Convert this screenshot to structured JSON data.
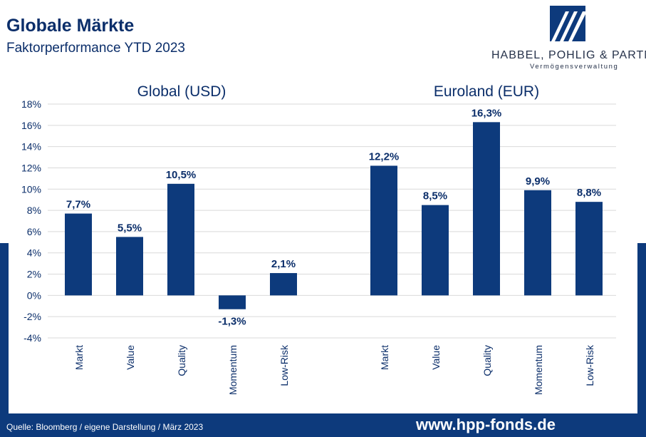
{
  "header": {
    "title": "Globale Märkte",
    "subtitle": "Faktorperformance YTD 2023"
  },
  "logo": {
    "name": "HABBEL, POHLIG & PARTNER",
    "tagline": "Vermögensverwaltung",
    "icon": "stripes-logo-icon"
  },
  "footer": {
    "source": "Quelle: Bloomberg / eigene Darstellung / März 2023",
    "url": "www.hpp-fonds.de"
  },
  "colors": {
    "bar": "#0d3a7c",
    "text": "#0b2e6a",
    "grid": "#d9d9d9"
  },
  "chart_data": {
    "type": "bar",
    "ylim": [
      -4,
      18
    ],
    "yticks": [
      "18%",
      "16%",
      "14%",
      "12%",
      "10%",
      "8%",
      "6%",
      "4%",
      "2%",
      "0%",
      "-2%",
      "-4%"
    ],
    "grid": true,
    "groups": [
      {
        "title": "Global (USD)",
        "categories": [
          "Markt",
          "Value",
          "Quality",
          "Momentum",
          "Low-Risk"
        ],
        "values": [
          7.7,
          5.5,
          10.5,
          -1.3,
          2.1
        ],
        "labels": [
          "7,7%",
          "5,5%",
          "10,5%",
          "-1,3%",
          "2,1%"
        ]
      },
      {
        "title": "Euroland (EUR)",
        "categories": [
          "Markt",
          "Value",
          "Quality",
          "Momentum",
          "Low-Risk"
        ],
        "values": [
          12.2,
          8.5,
          16.3,
          9.9,
          8.8
        ],
        "labels": [
          "12,2%",
          "8,5%",
          "16,3%",
          "9,9%",
          "8,8%"
        ]
      }
    ]
  }
}
